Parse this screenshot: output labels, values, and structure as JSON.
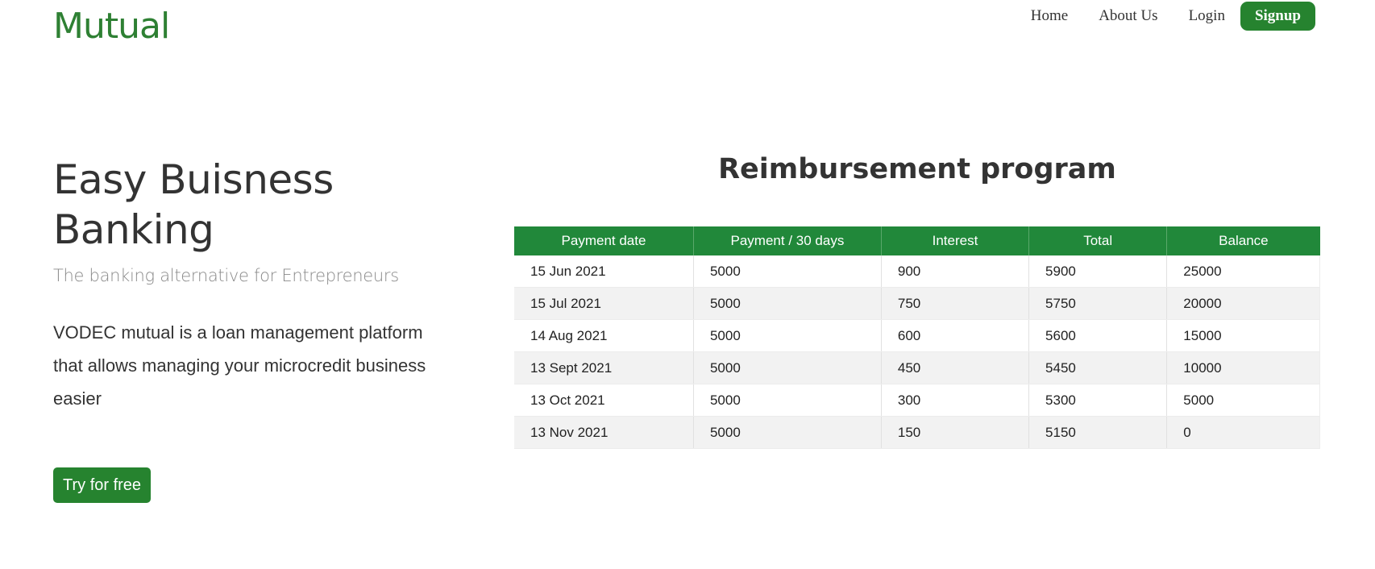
{
  "header": {
    "brand": "Mutual",
    "nav": {
      "home": "Home",
      "about": "About Us",
      "login": "Login",
      "signup": "Signup"
    }
  },
  "hero": {
    "title": "Easy Buisness Banking",
    "subtitle": "The banking alternative for Entrepreneurs",
    "description": "VODEC mutual is a loan management platform that allows managing your microcredit business easier",
    "cta": "Try for free"
  },
  "program": {
    "title": "Reimbursement program",
    "columns": [
      "Payment date",
      "Payment / 30 days",
      "Interest",
      "Total",
      "Balance"
    ],
    "rows": [
      [
        "15 Jun 2021",
        "5000",
        "900",
        "5900",
        "25000"
      ],
      [
        "15 Jul 2021",
        "5000",
        "750",
        "5750",
        "20000"
      ],
      [
        "14 Aug 2021",
        "5000",
        "600",
        "5600",
        "15000"
      ],
      [
        "13 Sept 2021",
        "5000",
        "450",
        "5450",
        "10000"
      ],
      [
        "13 Oct 2021",
        "5000",
        "300",
        "5300",
        "5000"
      ],
      [
        "13 Nov 2021",
        "5000",
        "150",
        "5150",
        "0"
      ]
    ]
  },
  "colors": {
    "brand_green": "#2e8033",
    "button_green": "#26832f",
    "table_header_green": "#21883a"
  }
}
